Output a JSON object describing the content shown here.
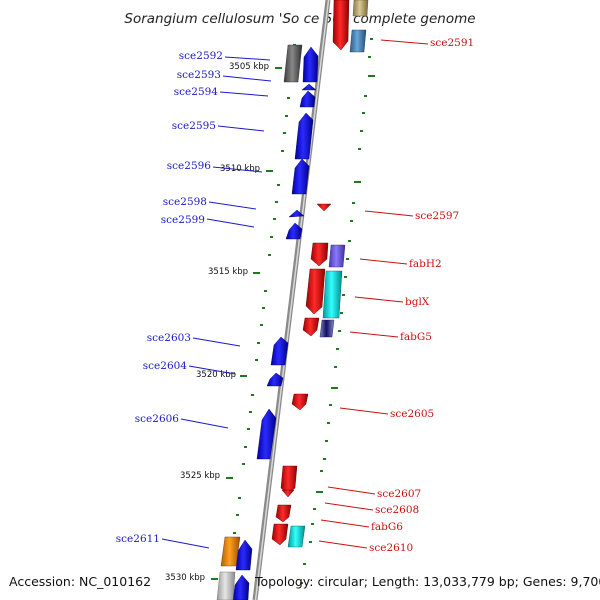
{
  "title": "Sorangium cellulosum 'So ce 56', complete genome",
  "footer": {
    "accession": "Accession: NC_010162",
    "info": "Topology: circular; Length: 13,033,779 bp; Genes: 9,700"
  },
  "colors": {
    "minus_strand": "#0000ee",
    "plus_strand": "#ee0000",
    "left_label": "#1a1acc",
    "right_label": "#cc1111",
    "tick": "#1f7a1f",
    "backbone": "#8a8a8a"
  },
  "kbp_markers": [
    "3505 kbp",
    "3510 kbp",
    "3515 kbp",
    "3520 kbp",
    "3525 kbp",
    "3530 kbp"
  ],
  "left_genes": [
    "sce2592",
    "sce2593",
    "sce2594",
    "sce2595",
    "sce2596",
    "sce2598",
    "sce2599",
    "sce2603",
    "sce2604",
    "sce2606",
    "sce2611"
  ],
  "right_genes": [
    "sce2591",
    "sce2597",
    "fabH2",
    "bglX",
    "fabG5",
    "sce2605",
    "sce2607",
    "sce2608",
    "fabG6",
    "sce2610"
  ]
}
